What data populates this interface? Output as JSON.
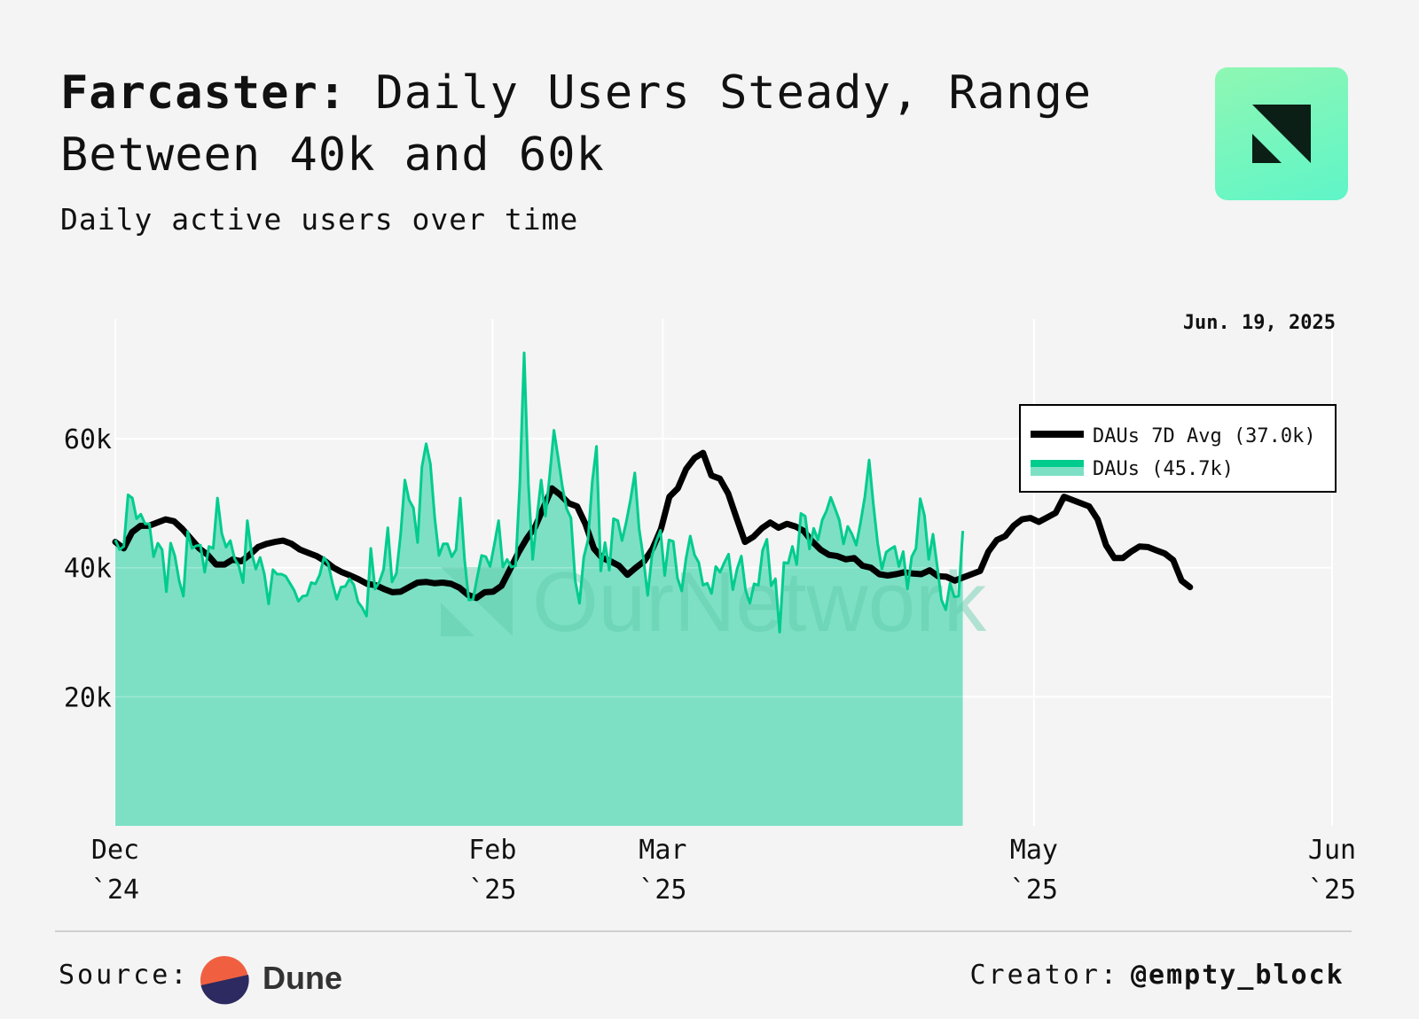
{
  "header": {
    "title_brand": "Farcaster:",
    "title_rest": "Daily Users Steady, Range Between 40k and 60k",
    "subtitle": "Daily active users over time"
  },
  "footer": {
    "source_label": "Source:",
    "source_name": "Dune",
    "creator_label": "Creator:",
    "creator_handle": "@empty_block"
  },
  "watermark": "OurNetwork",
  "colors": {
    "background": "#f4f4f4",
    "dau_line": "#00cc8e",
    "dau_fill": "#7de0c4",
    "avg_line": "#000000",
    "logo_gradient_start": "#8ff7b3",
    "logo_gradient_end": "#5ff5c8"
  },
  "chart_data": {
    "type": "area",
    "title": "Daily active users over time",
    "date_annotation": "Jun. 19, 2025",
    "x_start": "2024-12-01",
    "x_end": "2025-06-19",
    "ylim": [
      0,
      78000
    ],
    "yticks": [
      20000,
      40000,
      60000
    ],
    "ytick_labels": [
      "20k",
      "40k",
      "60k"
    ],
    "xticks": [
      {
        "day": 0,
        "month": "Dec",
        "year": "`24"
      },
      {
        "day": 62,
        "month": "Feb",
        "year": "`25"
      },
      {
        "day": 90,
        "month": "Mar",
        "year": "`25"
      },
      {
        "day": 151,
        "month": "May",
        "year": "`25"
      },
      {
        "day": 200,
        "month": "Jun",
        "year": "`25"
      }
    ],
    "legend": {
      "position": "top-right",
      "entries": [
        {
          "label": "DAUs 7D Avg (37.0k)",
          "series": "avg"
        },
        {
          "label": "DAUs (45.7k)",
          "series": "dau"
        }
      ]
    },
    "series": [
      {
        "name": "DAUs 7D Avg",
        "key": "avg",
        "step_days": 1.38,
        "values": [
          44000,
          43000,
          45500,
          46500,
          46500,
          47000,
          47500,
          47200,
          46000,
          44500,
          43000,
          42000,
          40500,
          40500,
          41300,
          41000,
          42000,
          43200,
          43700,
          44000,
          44200,
          43700,
          42800,
          42300,
          41800,
          41000,
          40000,
          39300,
          38800,
          38200,
          37500,
          37300,
          36700,
          36200,
          36300,
          37000,
          37700,
          37800,
          37600,
          37700,
          37500,
          36900,
          35800,
          35300,
          36200,
          36300,
          37200,
          39700,
          42300,
          44500,
          46300,
          49300,
          52300,
          51300,
          50000,
          49500,
          46800,
          43000,
          41500,
          41000,
          40300,
          38900,
          40000,
          41000,
          43000,
          46000,
          51000,
          52300,
          55300,
          57000,
          57800,
          54300,
          53800,
          51500,
          47700,
          44000,
          44800,
          46100,
          47000,
          46200,
          46800,
          46400,
          45700,
          44100,
          42800,
          42000,
          41800,
          41300,
          41500,
          40300,
          40000,
          39000,
          38800,
          39000,
          39300,
          39100,
          39000,
          39600,
          38700,
          38600,
          38000,
          38500,
          39000,
          39500,
          42500,
          44300,
          44900,
          46500,
          47500,
          47700,
          47100,
          47800,
          48500,
          51000,
          50500,
          50000,
          49500,
          47500,
          43500,
          41500,
          41500,
          42500,
          43300,
          43200,
          42700,
          42200,
          41200,
          38000,
          37000
        ]
      },
      {
        "name": "DAUs",
        "key": "dau",
        "step_days": 0.7,
        "values": [
          44300,
          42800,
          43300,
          51300,
          50800,
          47600,
          48300,
          46800,
          46800,
          41700,
          43800,
          42800,
          36300,
          43800,
          41800,
          38000,
          35600,
          45600,
          43000,
          43400,
          43500,
          39300,
          43300,
          43000,
          50800,
          45300,
          43200,
          44200,
          41400,
          40300,
          37700,
          47300,
          42300,
          39800,
          41600,
          39000,
          34400,
          39700,
          39000,
          39000,
          38700,
          37600,
          36500,
          34800,
          35600,
          35700,
          37700,
          37500,
          38900,
          41600,
          40600,
          37600,
          35100,
          37000,
          37100,
          38300,
          37400,
          34700,
          33800,
          32500,
          43000,
          36700,
          37800,
          39700,
          46200,
          37800,
          39100,
          45100,
          53600,
          50500,
          49300,
          43900,
          55600,
          59200,
          56100,
          47700,
          41900,
          43700,
          43700,
          41700,
          42800,
          50800,
          41300,
          35000,
          35100,
          38600,
          41900,
          41700,
          40200,
          43600,
          47300,
          40100,
          41300,
          40100,
          40300,
          53200,
          73300,
          53000,
          41300,
          47700,
          53600,
          48000,
          54300,
          61300,
          57000,
          52500,
          49100,
          47700,
          38000,
          34500,
          41600,
          44300,
          53300,
          58800,
          39500,
          43900,
          39600,
          47600,
          47300,
          44200,
          47100,
          50600,
          54700,
          46100,
          41600,
          35700,
          41900,
          44100,
          45800,
          38800,
          44300,
          44100,
          38400,
          36400,
          41400,
          44900,
          42000,
          40800,
          37300,
          37600,
          36000,
          40200,
          39300,
          40800,
          42100,
          36600,
          39800,
          41800,
          36500,
          34500,
          37500,
          37300,
          42700,
          44400,
          37200,
          38300,
          30000,
          40800,
          40700,
          43300,
          40500,
          48400,
          48000,
          42900,
          46100,
          44300,
          47400,
          48800,
          50900,
          49200,
          47400,
          43700,
          46400,
          45200,
          43500,
          47000,
          51000,
          56700,
          49800,
          43800,
          39800,
          42400,
          42900,
          43300,
          40200,
          42500,
          36700,
          41700,
          43000,
          50700,
          48100,
          41300,
          45200,
          40200,
          35000,
          33500,
          37600,
          35500,
          35600,
          45700
        ]
      }
    ]
  }
}
